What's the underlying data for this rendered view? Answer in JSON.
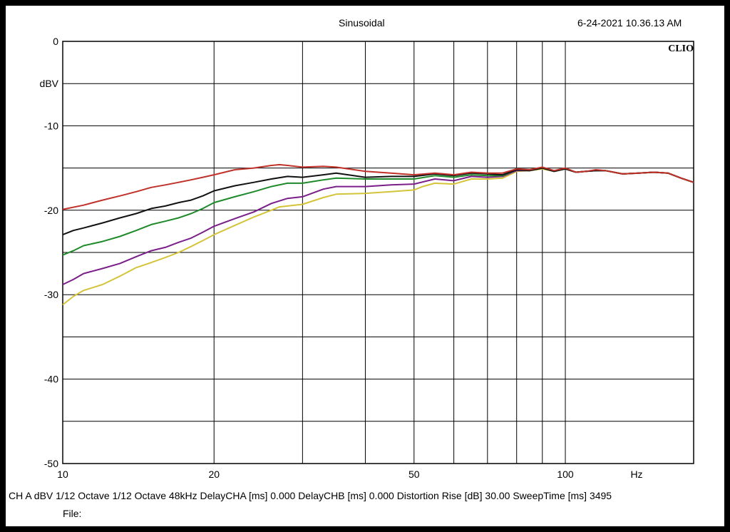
{
  "header": {
    "title": "Sinusoidal",
    "datetime": "6-24-2021 10.36.13 AM",
    "logo": "CLIO"
  },
  "footer": {
    "line1": "CH A  dBV   1/12 Octave   1/12 Octave   48kHz   DelayCHA [ms] 0.000     DelayCHB [ms] 0.000     Distortion Rise [dB] 30.00     SweepTime [ms] 3495",
    "line2": "File:"
  },
  "chart_data": {
    "type": "line",
    "title": "Sinusoidal",
    "xlabel": "Hz",
    "ylabel": "dBV",
    "xscale": "log",
    "xlim": [
      10,
      180
    ],
    "ylim": [
      -50,
      0
    ],
    "grid": true,
    "x_tick_labels": [
      {
        "value": 10,
        "label": "10"
      },
      {
        "value": 20,
        "label": "20"
      },
      {
        "value": 50,
        "label": "50"
      },
      {
        "value": 100,
        "label": "100"
      }
    ],
    "x_unit_label": "Hz",
    "x_gridlines": [
      20,
      30,
      40,
      50,
      60,
      70,
      80,
      90,
      100
    ],
    "y_tick_labels": [
      {
        "value": 0,
        "label": "0"
      },
      {
        "value": -10,
        "label": "-10"
      },
      {
        "value": -20,
        "label": "-20"
      },
      {
        "value": -30,
        "label": "-30"
      },
      {
        "value": -40,
        "label": "-40"
      },
      {
        "value": -50,
        "label": "-50"
      }
    ],
    "y_unit_label": "dBV",
    "y_gridlines": [
      -5,
      -10,
      -15,
      -20,
      -25,
      -30,
      -35,
      -40,
      -45
    ],
    "series": [
      {
        "color": "#d4c43a",
        "points": [
          [
            10,
            -31.2
          ],
          [
            10.5,
            -30.2
          ],
          [
            11,
            -29.5
          ],
          [
            12,
            -28.8
          ],
          [
            13,
            -27.8
          ],
          [
            14,
            -26.8
          ],
          [
            15,
            -26.2
          ],
          [
            16,
            -25.6
          ],
          [
            17,
            -25.0
          ],
          [
            18,
            -24.3
          ],
          [
            19,
            -23.6
          ],
          [
            20,
            -22.9
          ],
          [
            22,
            -21.8
          ],
          [
            24,
            -20.8
          ],
          [
            26,
            -20.0
          ],
          [
            27,
            -19.6
          ],
          [
            30,
            -19.3
          ],
          [
            33,
            -18.5
          ],
          [
            35,
            -18.1
          ],
          [
            40,
            -18.0
          ],
          [
            45,
            -17.8
          ],
          [
            50,
            -17.6
          ],
          [
            52,
            -17.2
          ],
          [
            55,
            -16.8
          ],
          [
            60,
            -16.9
          ],
          [
            65,
            -16.3
          ],
          [
            70,
            -16.3
          ],
          [
            75,
            -16.2
          ],
          [
            80,
            -15.4
          ],
          [
            85,
            -15.3
          ],
          [
            90,
            -15.1
          ],
          [
            95,
            -15.4
          ],
          [
            100,
            -15.1
          ],
          [
            105,
            -15.5
          ],
          [
            110,
            -15.4
          ],
          [
            115,
            -15.3
          ],
          [
            120,
            -15.3
          ],
          [
            130,
            -15.7
          ],
          [
            140,
            -15.6
          ],
          [
            150,
            -15.5
          ],
          [
            160,
            -15.6
          ],
          [
            170,
            -16.2
          ],
          [
            180,
            -16.7
          ]
        ]
      },
      {
        "color": "#7a1f8a",
        "points": [
          [
            10,
            -28.8
          ],
          [
            10.5,
            -28.2
          ],
          [
            11,
            -27.5
          ],
          [
            12,
            -26.9
          ],
          [
            13,
            -26.3
          ],
          [
            14,
            -25.5
          ],
          [
            15,
            -24.8
          ],
          [
            16,
            -24.4
          ],
          [
            17,
            -23.8
          ],
          [
            18,
            -23.3
          ],
          [
            19,
            -22.6
          ],
          [
            20,
            -21.9
          ],
          [
            22,
            -21.0
          ],
          [
            24,
            -20.2
          ],
          [
            26,
            -19.2
          ],
          [
            28,
            -18.6
          ],
          [
            30,
            -18.4
          ],
          [
            33,
            -17.5
          ],
          [
            35,
            -17.2
          ],
          [
            40,
            -17.2
          ],
          [
            45,
            -17.0
          ],
          [
            50,
            -16.9
          ],
          [
            55,
            -16.3
          ],
          [
            60,
            -16.5
          ],
          [
            65,
            -16.0
          ],
          [
            70,
            -16.1
          ],
          [
            75,
            -16.0
          ],
          [
            80,
            -15.3
          ],
          [
            85,
            -15.3
          ],
          [
            90,
            -15.0
          ],
          [
            95,
            -15.4
          ],
          [
            100,
            -15.1
          ],
          [
            105,
            -15.5
          ],
          [
            110,
            -15.4
          ],
          [
            115,
            -15.3
          ],
          [
            120,
            -15.3
          ],
          [
            130,
            -15.7
          ],
          [
            140,
            -15.6
          ],
          [
            150,
            -15.5
          ],
          [
            160,
            -15.6
          ],
          [
            170,
            -16.2
          ],
          [
            180,
            -16.7
          ]
        ]
      },
      {
        "color": "#1e8a2a",
        "points": [
          [
            10,
            -25.3
          ],
          [
            10.5,
            -24.8
          ],
          [
            11,
            -24.2
          ],
          [
            12,
            -23.7
          ],
          [
            13,
            -23.1
          ],
          [
            14,
            -22.4
          ],
          [
            15,
            -21.7
          ],
          [
            16,
            -21.3
          ],
          [
            17,
            -20.9
          ],
          [
            18,
            -20.4
          ],
          [
            19,
            -19.8
          ],
          [
            20,
            -19.1
          ],
          [
            22,
            -18.4
          ],
          [
            24,
            -17.8
          ],
          [
            26,
            -17.2
          ],
          [
            28,
            -16.8
          ],
          [
            30,
            -16.8
          ],
          [
            33,
            -16.4
          ],
          [
            35,
            -16.2
          ],
          [
            40,
            -16.3
          ],
          [
            45,
            -16.3
          ],
          [
            50,
            -16.3
          ],
          [
            55,
            -15.9
          ],
          [
            60,
            -16.1
          ],
          [
            65,
            -15.8
          ],
          [
            70,
            -15.9
          ],
          [
            75,
            -15.9
          ],
          [
            80,
            -15.2
          ],
          [
            85,
            -15.3
          ],
          [
            90,
            -15.0
          ],
          [
            95,
            -15.4
          ],
          [
            100,
            -15.1
          ],
          [
            105,
            -15.5
          ],
          [
            110,
            -15.4
          ],
          [
            115,
            -15.3
          ],
          [
            120,
            -15.3
          ],
          [
            130,
            -15.7
          ],
          [
            140,
            -15.6
          ],
          [
            150,
            -15.5
          ],
          [
            160,
            -15.6
          ],
          [
            170,
            -16.2
          ],
          [
            180,
            -16.7
          ]
        ]
      },
      {
        "color": "#111111",
        "points": [
          [
            10,
            -22.9
          ],
          [
            10.5,
            -22.4
          ],
          [
            11,
            -22.1
          ],
          [
            12,
            -21.5
          ],
          [
            13,
            -20.9
          ],
          [
            14,
            -20.4
          ],
          [
            15,
            -19.8
          ],
          [
            16,
            -19.5
          ],
          [
            17,
            -19.1
          ],
          [
            18,
            -18.8
          ],
          [
            19,
            -18.3
          ],
          [
            20,
            -17.7
          ],
          [
            22,
            -17.1
          ],
          [
            24,
            -16.7
          ],
          [
            26,
            -16.3
          ],
          [
            28,
            -16.0
          ],
          [
            30,
            -16.1
          ],
          [
            33,
            -15.8
          ],
          [
            35,
            -15.6
          ],
          [
            40,
            -16.1
          ],
          [
            45,
            -16.0
          ],
          [
            50,
            -16.0
          ],
          [
            55,
            -15.7
          ],
          [
            60,
            -15.9
          ],
          [
            65,
            -15.6
          ],
          [
            70,
            -15.7
          ],
          [
            75,
            -15.8
          ],
          [
            80,
            -15.2
          ],
          [
            85,
            -15.3
          ],
          [
            90,
            -15.0
          ],
          [
            95,
            -15.4
          ],
          [
            100,
            -15.1
          ],
          [
            105,
            -15.5
          ],
          [
            110,
            -15.4
          ],
          [
            115,
            -15.3
          ],
          [
            120,
            -15.3
          ],
          [
            130,
            -15.7
          ],
          [
            140,
            -15.6
          ],
          [
            150,
            -15.5
          ],
          [
            160,
            -15.6
          ],
          [
            170,
            -16.2
          ],
          [
            180,
            -16.7
          ]
        ]
      },
      {
        "color": "#c0312a",
        "points": [
          [
            10,
            -19.9
          ],
          [
            11,
            -19.4
          ],
          [
            12,
            -18.8
          ],
          [
            13,
            -18.3
          ],
          [
            14,
            -17.8
          ],
          [
            15,
            -17.3
          ],
          [
            16,
            -17.0
          ],
          [
            17,
            -16.7
          ],
          [
            18,
            -16.4
          ],
          [
            19,
            -16.1
          ],
          [
            20,
            -15.8
          ],
          [
            22,
            -15.2
          ],
          [
            24,
            -15.0
          ],
          [
            26,
            -14.7
          ],
          [
            27,
            -14.6
          ],
          [
            28,
            -14.7
          ],
          [
            30,
            -14.9
          ],
          [
            33,
            -14.8
          ],
          [
            35,
            -14.9
          ],
          [
            40,
            -15.4
          ],
          [
            45,
            -15.6
          ],
          [
            50,
            -15.8
          ],
          [
            55,
            -15.6
          ],
          [
            60,
            -15.8
          ],
          [
            65,
            -15.5
          ],
          [
            70,
            -15.6
          ],
          [
            75,
            -15.6
          ],
          [
            80,
            -15.1
          ],
          [
            85,
            -15.2
          ],
          [
            90,
            -14.9
          ],
          [
            95,
            -15.3
          ],
          [
            100,
            -15.0
          ],
          [
            105,
            -15.5
          ],
          [
            110,
            -15.4
          ],
          [
            115,
            -15.2
          ],
          [
            120,
            -15.3
          ],
          [
            130,
            -15.7
          ],
          [
            140,
            -15.6
          ],
          [
            150,
            -15.5
          ],
          [
            160,
            -15.6
          ],
          [
            170,
            -16.2
          ],
          [
            180,
            -16.7
          ]
        ]
      }
    ]
  }
}
